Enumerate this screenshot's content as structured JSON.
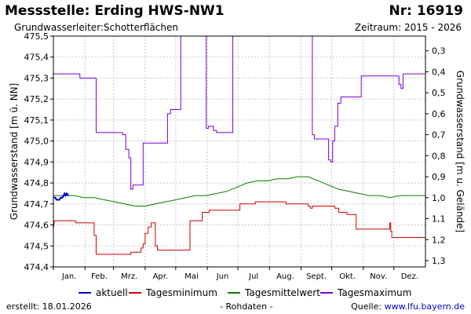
{
  "header": {
    "title": "Messstelle: Erding HWS-NW1",
    "nr": "Nr: 16919",
    "aquifer_label": "Grundwasserleiter:",
    "aquifer_value": "Schotterflächen",
    "period": "Zeitraum: 2015 - 2026"
  },
  "footer": {
    "created": "erstellt:  18.01.2026",
    "raw": "- Rohdaten -",
    "source_prefix": "Quelle: ",
    "source_link": "www.lfu.bayern.de"
  },
  "chart_data": {
    "type": "line",
    "ylabel": "Grundwasserstand [m ü. NN]",
    "y2label": "Grundwasserstand [m u. Gelände]",
    "ylim": [
      474.4,
      475.5
    ],
    "y2lim": [
      1.33,
      0.23
    ],
    "yticks": [
      "474,4",
      "474,5",
      "474,6",
      "474,7",
      "474,8",
      "474,9",
      "475,0",
      "475,1",
      "475,2",
      "475,3",
      "475,4",
      "475,5"
    ],
    "y2ticks": [
      {
        "value": 0.3,
        "label": "0,3"
      },
      {
        "value": 0.4,
        "label": "0,4"
      },
      {
        "value": 0.5,
        "label": "0,5"
      },
      {
        "value": 0.6,
        "label": "0,6"
      },
      {
        "value": 0.7,
        "label": "0,7"
      },
      {
        "value": 0.8,
        "label": "0,8"
      },
      {
        "value": 0.9,
        "label": "0,9"
      },
      {
        "value": 1.0,
        "label": "1,0"
      },
      {
        "value": 1.1,
        "label": "1,1"
      },
      {
        "value": 1.2,
        "label": "1,2"
      },
      {
        "value": 1.3,
        "label": "1,3"
      }
    ],
    "xlim": [
      0,
      365
    ],
    "months": [
      "Jan.",
      "Feb.",
      "Mrz.",
      "Apr.",
      "Mai",
      "Jun",
      "Jul",
      "Aug.",
      "Sept.",
      "Okt.",
      "Nov.",
      "Dez."
    ],
    "grid": true,
    "legend_position": "bottom",
    "series": [
      {
        "name": "aktuell",
        "color": "#0000cc",
        "width": 2,
        "points": [
          [
            0,
            474.73
          ],
          [
            2,
            474.73
          ],
          [
            3,
            474.72
          ],
          [
            6,
            474.72
          ],
          [
            7,
            474.73
          ],
          [
            9,
            474.73
          ],
          [
            10,
            474.74
          ],
          [
            11,
            474.75
          ],
          [
            12,
            474.74
          ],
          [
            13,
            474.75
          ],
          [
            15,
            474.74
          ]
        ]
      },
      {
        "name": "Tagesminimum",
        "color": "#cc0000",
        "width": 1,
        "points": [
          [
            0,
            474.58
          ],
          [
            1,
            474.62
          ],
          [
            22,
            474.62
          ],
          [
            22,
            474.61
          ],
          [
            40,
            474.61
          ],
          [
            40,
            474.55
          ],
          [
            42,
            474.55
          ],
          [
            42,
            474.46
          ],
          [
            76,
            474.46
          ],
          [
            76,
            474.47
          ],
          [
            86,
            474.47
          ],
          [
            86,
            474.49
          ],
          [
            88,
            474.49
          ],
          [
            88,
            474.51
          ],
          [
            90,
            474.51
          ],
          [
            90,
            474.56
          ],
          [
            93,
            474.56
          ],
          [
            93,
            474.59
          ],
          [
            96,
            474.59
          ],
          [
            96,
            474.61
          ],
          [
            100,
            474.61
          ],
          [
            100,
            474.5
          ],
          [
            102,
            474.5
          ],
          [
            102,
            474.48
          ],
          [
            134,
            474.48
          ],
          [
            134,
            474.62
          ],
          [
            146,
            474.62
          ],
          [
            146,
            474.66
          ],
          [
            153,
            474.66
          ],
          [
            153,
            474.67
          ],
          [
            183,
            474.67
          ],
          [
            183,
            474.7
          ],
          [
            198,
            474.7
          ],
          [
            198,
            474.71
          ],
          [
            228,
            474.71
          ],
          [
            228,
            474.7
          ],
          [
            250,
            474.7
          ],
          [
            250,
            474.69
          ],
          [
            252,
            474.69
          ],
          [
            252,
            474.68
          ],
          [
            254,
            474.68
          ],
          [
            254,
            474.69
          ],
          [
            276,
            474.69
          ],
          [
            276,
            474.68
          ],
          [
            280,
            474.68
          ],
          [
            280,
            474.66
          ],
          [
            288,
            474.66
          ],
          [
            288,
            474.65
          ],
          [
            297,
            474.65
          ],
          [
            297,
            474.58
          ],
          [
            330,
            474.58
          ],
          [
            330,
            474.61
          ],
          [
            331,
            474.61
          ],
          [
            331,
            474.57
          ],
          [
            332,
            474.57
          ],
          [
            332,
            474.54
          ],
          [
            365,
            474.54
          ]
        ]
      },
      {
        "name": "Tagesmittelwert",
        "color": "#008000",
        "width": 1,
        "points": [
          [
            0,
            474.74
          ],
          [
            10,
            474.74
          ],
          [
            20,
            474.74
          ],
          [
            30,
            474.73
          ],
          [
            40,
            474.73
          ],
          [
            50,
            474.72
          ],
          [
            60,
            474.71
          ],
          [
            70,
            474.7
          ],
          [
            80,
            474.69
          ],
          [
            90,
            474.69
          ],
          [
            100,
            474.7
          ],
          [
            110,
            474.71
          ],
          [
            120,
            474.72
          ],
          [
            130,
            474.73
          ],
          [
            140,
            474.74
          ],
          [
            150,
            474.74
          ],
          [
            160,
            474.75
          ],
          [
            170,
            474.76
          ],
          [
            180,
            474.78
          ],
          [
            190,
            474.8
          ],
          [
            200,
            474.81
          ],
          [
            210,
            474.81
          ],
          [
            220,
            474.82
          ],
          [
            230,
            474.82
          ],
          [
            240,
            474.83
          ],
          [
            250,
            474.83
          ],
          [
            260,
            474.81
          ],
          [
            270,
            474.79
          ],
          [
            280,
            474.77
          ],
          [
            290,
            474.76
          ],
          [
            300,
            474.75
          ],
          [
            310,
            474.74
          ],
          [
            320,
            474.74
          ],
          [
            330,
            474.73
          ],
          [
            340,
            474.74
          ],
          [
            350,
            474.74
          ],
          [
            365,
            474.74
          ]
        ]
      },
      {
        "name": "Tagesmaximum",
        "color": "#7a00cc",
        "width": 1,
        "points": [
          [
            0,
            475.32
          ],
          [
            26,
            475.32
          ],
          [
            26,
            475.3
          ],
          [
            42,
            475.3
          ],
          [
            42,
            475.04
          ],
          [
            68,
            475.04
          ],
          [
            68,
            475.03
          ],
          [
            71,
            475.03
          ],
          [
            71,
            474.96
          ],
          [
            74,
            474.96
          ],
          [
            74,
            474.92
          ],
          [
            76,
            474.92
          ],
          [
            76,
            474.77
          ],
          [
            78,
            474.77
          ],
          [
            78,
            474.79
          ],
          [
            88,
            474.79
          ],
          [
            88,
            474.99
          ],
          [
            112,
            474.99
          ],
          [
            112,
            475.13
          ],
          [
            115,
            475.13
          ],
          [
            115,
            475.15
          ],
          [
            125,
            475.15
          ],
          [
            125,
            475.5
          ],
          [
            150,
            475.5
          ],
          [
            150,
            475.06
          ],
          [
            152,
            475.06
          ],
          [
            152,
            475.07
          ],
          [
            157,
            475.07
          ],
          [
            157,
            475.05
          ],
          [
            160,
            475.05
          ],
          [
            160,
            475.04
          ],
          [
            176,
            475.04
          ],
          [
            176,
            475.5
          ],
          [
            254,
            475.5
          ],
          [
            254,
            475.03
          ],
          [
            256,
            475.03
          ],
          [
            256,
            475.01
          ],
          [
            270,
            475.01
          ],
          [
            270,
            474.91
          ],
          [
            272,
            474.91
          ],
          [
            272,
            474.9
          ],
          [
            274,
            474.9
          ],
          [
            274,
            475.0
          ],
          [
            276,
            475.0
          ],
          [
            276,
            475.07
          ],
          [
            279,
            475.07
          ],
          [
            279,
            475.18
          ],
          [
            282,
            475.18
          ],
          [
            282,
            475.21
          ],
          [
            302,
            475.21
          ],
          [
            302,
            475.31
          ],
          [
            339,
            475.31
          ],
          [
            339,
            475.27
          ],
          [
            341,
            475.27
          ],
          [
            341,
            475.25
          ],
          [
            343,
            475.25
          ],
          [
            343,
            475.32
          ],
          [
            365,
            475.32
          ]
        ]
      }
    ]
  }
}
